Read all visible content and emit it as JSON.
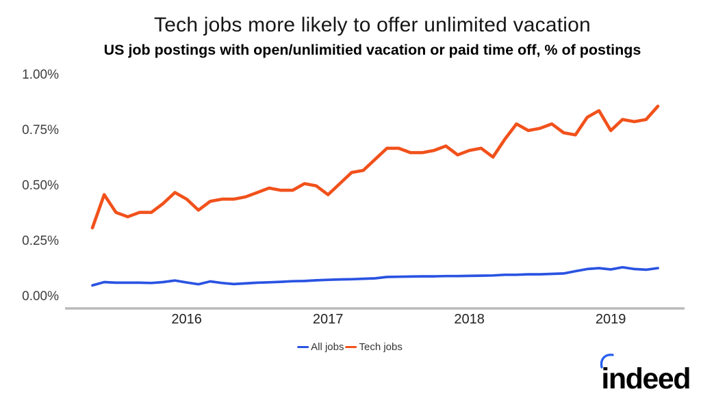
{
  "header": {
    "title": "Tech jobs more likely to offer unlimited vacation",
    "subtitle": "US job postings with open/unlimitied vacation or paid time off, % of postings"
  },
  "colors": {
    "all_jobs_blue": "#2a53e2",
    "tech_jobs_orange": "#f1511b",
    "axis_line_gray": "#b9b9b9",
    "logo_blue": "#2760ee"
  },
  "logo": {
    "text": "indeed"
  },
  "chart_data": {
    "type": "line",
    "title": "Tech jobs more likely to offer unlimited vacation",
    "subtitle": "US job postings with open/unlimitied vacation or paid time off, % of postings",
    "xlabel": "",
    "ylabel": "% of postings",
    "ylim": [
      0,
      1.0
    ],
    "grid": false,
    "legend_position": "bottom-center",
    "x_unit": "month",
    "x": [
      "2015-05",
      "2015-06",
      "2015-07",
      "2015-08",
      "2015-09",
      "2015-10",
      "2015-11",
      "2015-12",
      "2016-01",
      "2016-02",
      "2016-03",
      "2016-04",
      "2016-05",
      "2016-06",
      "2016-07",
      "2016-08",
      "2016-09",
      "2016-10",
      "2016-11",
      "2016-12",
      "2017-01",
      "2017-02",
      "2017-03",
      "2017-04",
      "2017-05",
      "2017-06",
      "2017-07",
      "2017-08",
      "2017-09",
      "2017-10",
      "2017-11",
      "2017-12",
      "2018-01",
      "2018-02",
      "2018-03",
      "2018-04",
      "2018-05",
      "2018-06",
      "2018-07",
      "2018-08",
      "2018-09",
      "2018-10",
      "2018-11",
      "2018-12",
      "2019-01",
      "2019-02",
      "2019-03",
      "2019-04",
      "2019-05"
    ],
    "x_ticks": [
      {
        "label": "2016",
        "month_index": 8
      },
      {
        "label": "2017",
        "month_index": 20
      },
      {
        "label": "2018",
        "month_index": 32
      },
      {
        "label": "2019",
        "month_index": 44
      }
    ],
    "y_ticks": [
      {
        "label": "1.00%",
        "value": 1.0
      },
      {
        "label": "0.75%",
        "value": 0.75
      },
      {
        "label": "0.50%",
        "value": 0.5
      },
      {
        "label": "0.25%",
        "value": 0.25
      },
      {
        "label": "0.00%",
        "value": 0.0
      }
    ],
    "series": [
      {
        "name": "All jobs",
        "color": "#2a53e2",
        "values": [
          0.05,
          0.065,
          0.062,
          0.062,
          0.062,
          0.061,
          0.065,
          0.072,
          0.063,
          0.055,
          0.068,
          0.061,
          0.056,
          0.059,
          0.062,
          0.064,
          0.066,
          0.069,
          0.07,
          0.073,
          0.075,
          0.077,
          0.078,
          0.08,
          0.082,
          0.088,
          0.089,
          0.09,
          0.091,
          0.091,
          0.092,
          0.092,
          0.093,
          0.094,
          0.095,
          0.098,
          0.098,
          0.1,
          0.1,
          0.102,
          0.104,
          0.114,
          0.124,
          0.128,
          0.122,
          0.132,
          0.124,
          0.121,
          0.128
        ]
      },
      {
        "name": "Tech jobs",
        "color": "#f1511b",
        "values": [
          0.31,
          0.46,
          0.38,
          0.36,
          0.38,
          0.38,
          0.42,
          0.47,
          0.44,
          0.39,
          0.43,
          0.44,
          0.44,
          0.45,
          0.47,
          0.49,
          0.48,
          0.48,
          0.51,
          0.5,
          0.46,
          0.51,
          0.56,
          0.57,
          0.62,
          0.67,
          0.67,
          0.65,
          0.65,
          0.66,
          0.68,
          0.64,
          0.66,
          0.67,
          0.63,
          0.71,
          0.78,
          0.75,
          0.76,
          0.78,
          0.74,
          0.73,
          0.81,
          0.84,
          0.75,
          0.8,
          0.79,
          0.8,
          0.86
        ]
      }
    ]
  }
}
